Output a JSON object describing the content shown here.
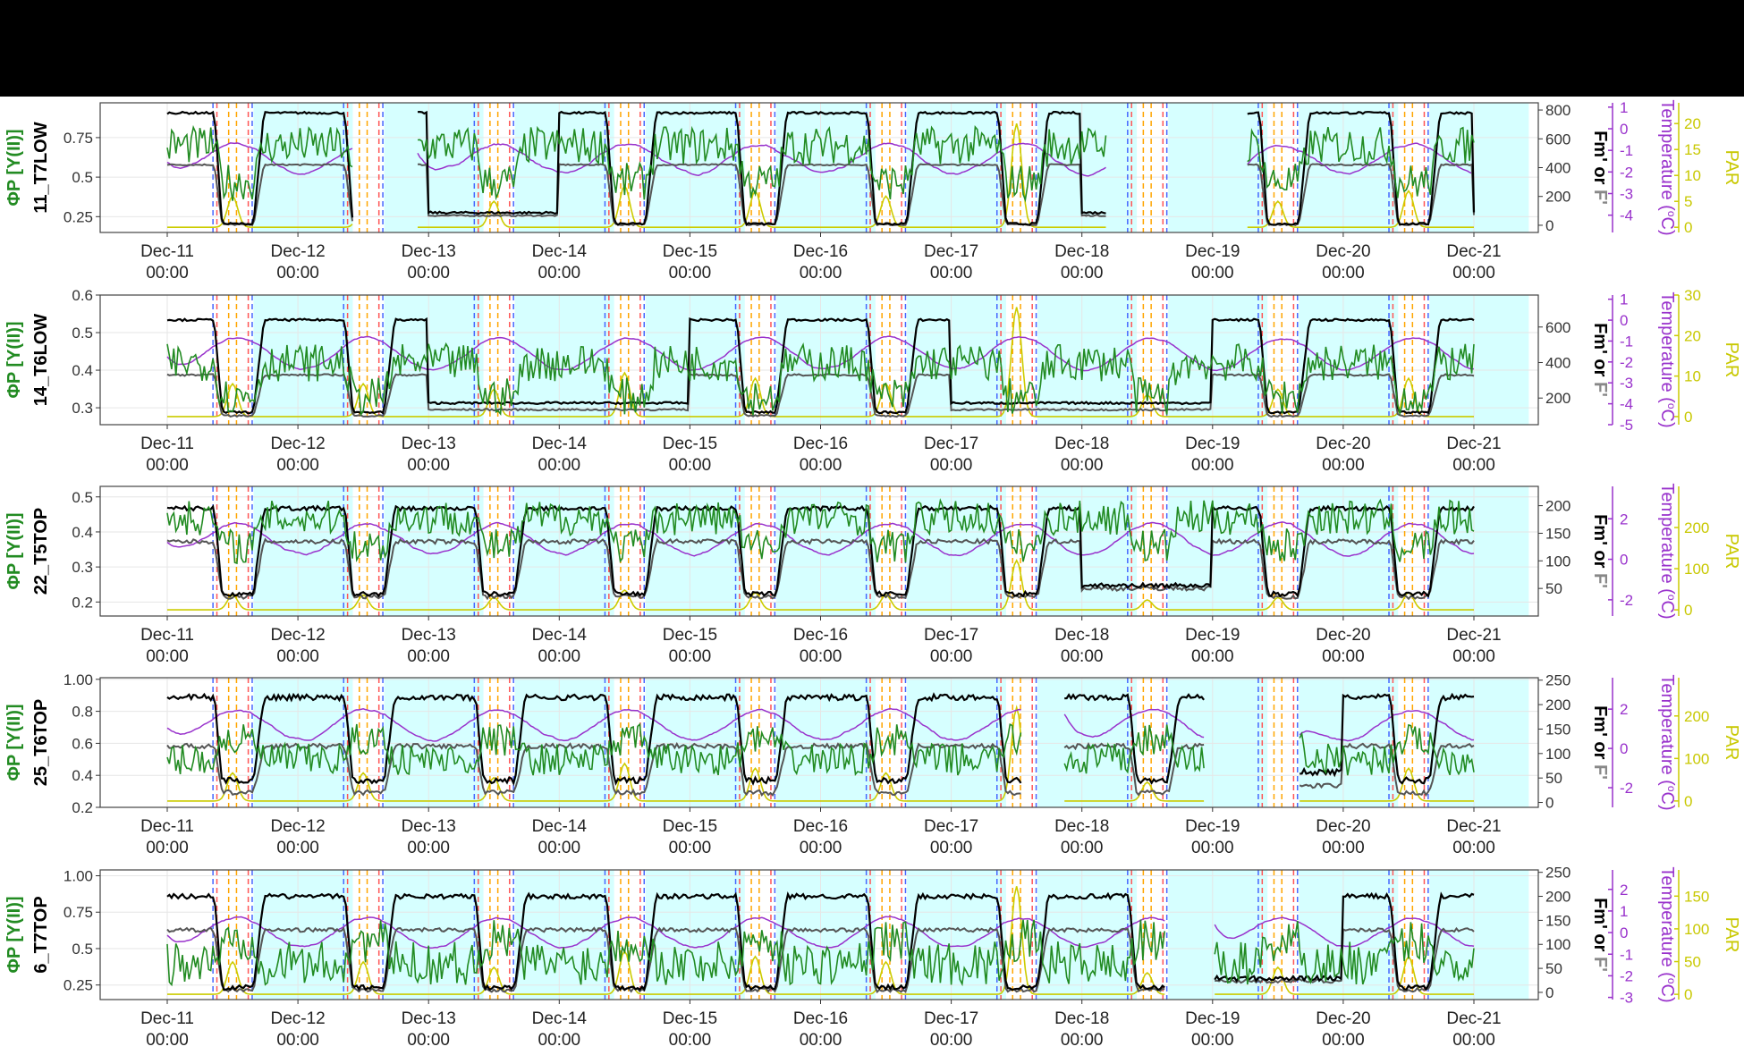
{
  "chart_data": {
    "type": "line",
    "x_range": [
      "Dec-11 00:00",
      "Dec-21 00:00"
    ],
    "x_tick_labels": [
      [
        "Dec-11",
        "00:00"
      ],
      [
        "Dec-12",
        "00:00"
      ],
      [
        "Dec-13",
        "00:00"
      ],
      [
        "Dec-14",
        "00:00"
      ],
      [
        "Dec-15",
        "00:00"
      ],
      [
        "Dec-16",
        "00:00"
      ],
      [
        "Dec-17",
        "00:00"
      ],
      [
        "Dec-18",
        "00:00"
      ],
      [
        "Dec-19",
        "00:00"
      ],
      [
        "Dec-20",
        "00:00"
      ],
      [
        "Dec-21",
        "00:00"
      ]
    ],
    "axis_labels": {
      "phi": "ΦP [Y(II)]",
      "fm": "Fm' or F'",
      "fm_part_black": "Fm'",
      "fm_part_or": " or ",
      "fm_part_grey": "F'",
      "temp": "Temperature (°C)",
      "temp_pre": "Temperature (",
      "temp_sup": "o",
      "temp_post": "C)",
      "par": "PAR"
    },
    "colors": {
      "phi": "#228b22",
      "fm": "#000000",
      "f": "#555555",
      "temperature": "#9932cc",
      "par": "#cccc00",
      "night_shade": "#00ffff",
      "marker_red": "#ff5555",
      "marker_blue": "#4466ff",
      "marker_orange": "#ffa500"
    },
    "night_shading_days": [
      0.42,
      0.66
    ],
    "marker_line_offsets_days": [
      {
        "offset": 0.35,
        "color": "blue"
      },
      {
        "offset": 0.38,
        "color": "red"
      },
      {
        "offset": 0.47,
        "color": "orange"
      },
      {
        "offset": 0.53,
        "color": "orange"
      },
      {
        "offset": 0.62,
        "color": "red"
      },
      {
        "offset": 0.65,
        "color": "blue"
      }
    ],
    "panels": [
      {
        "id": "11_T7LOW",
        "phi_ylim": [
          0.15,
          0.97
        ],
        "phi_ticks": [
          0.25,
          0.5,
          0.75
        ],
        "fm_ylim": [
          -50,
          850
        ],
        "fm_ticks": [
          0,
          200,
          400,
          600,
          800
        ],
        "temp_ylim": [
          -4.8,
          1.2
        ],
        "temp_ticks": [
          -4,
          -3,
          -2,
          -1,
          0,
          1
        ],
        "par_ylim": [
          -1,
          24
        ],
        "par_ticks": [
          0,
          5,
          10,
          15,
          20
        ],
        "gaps": [
          [
            1.42,
            1.9
          ],
          [
            7.2,
            8.25
          ]
        ],
        "phi": {
          "day": 0.47,
          "night": 0.7,
          "noise": 0.12
        },
        "fm": {
          "day": 10,
          "night": 780,
          "noise": 15,
          "night_days": [
            0,
            3,
            4,
            5,
            8
          ]
        },
        "f": {
          "day": 5,
          "night": 420,
          "noise": 10
        },
        "temp": {
          "base": -1.4,
          "amp": 1.6,
          "noise": 0.5
        },
        "par_peak": 20
      },
      {
        "id": "14_T6LOW",
        "phi_ylim": [
          0.255,
          0.6
        ],
        "phi_ticks": [
          0.3,
          0.4,
          0.5,
          0.6
        ],
        "fm_ylim": [
          50,
          780
        ],
        "fm_ticks": [
          200,
          400,
          600
        ],
        "temp_ylim": [
          -5,
          1.2
        ],
        "temp_ticks": [
          -5,
          -4,
          -3,
          -2,
          -1,
          0,
          1
        ],
        "par_ylim": [
          -2,
          30
        ],
        "par_ticks": [
          0,
          10,
          20,
          30
        ],
        "gaps": [],
        "phi": {
          "day": 0.33,
          "night": 0.42,
          "noise": 0.05
        },
        "fm": {
          "day": 120,
          "night": 640,
          "noise": 12,
          "night_days": [
            0,
            4,
            8,
            9
          ]
        },
        "f": {
          "day": 100,
          "night": 330,
          "noise": 10
        },
        "temp": {
          "base": -1.6,
          "amp": 1.8,
          "noise": 0.4
        },
        "par_peak": 27
      },
      {
        "id": "22_T5TOP",
        "phi_ylim": [
          0.16,
          0.53
        ],
        "phi_ticks": [
          0.2,
          0.3,
          0.4,
          0.5
        ],
        "fm_ylim": [
          0,
          235
        ],
        "fm_ticks": [
          50,
          100,
          150,
          200
        ],
        "temp_ylim": [
          -2.8,
          3.6
        ],
        "temp_ticks": [
          -2,
          0,
          2
        ],
        "par_ylim": [
          -15,
          300
        ],
        "par_ticks": [
          0,
          100,
          200
        ],
        "gaps": [],
        "phi": {
          "day": 0.36,
          "night": 0.44,
          "noise": 0.05
        },
        "fm": {
          "day": 40,
          "night": 195,
          "noise": 8,
          "night_days": [
            0,
            1,
            3,
            4,
            5,
            8,
            9
          ]
        },
        "f": {
          "day": 35,
          "night": 135,
          "noise": 8
        },
        "temp": {
          "base": 1.0,
          "amp": 1.8,
          "noise": 0.5
        },
        "par_peak": 120
      },
      {
        "id": "25_T6TOP",
        "phi_ylim": [
          0.2,
          1.01
        ],
        "phi_ticks": [
          0.2,
          0.4,
          0.6,
          0.8,
          1.0
        ],
        "fm_ylim": [
          -10,
          255
        ],
        "fm_ticks": [
          0,
          50,
          100,
          150,
          200,
          250
        ],
        "temp_ylim": [
          -3.0,
          3.6
        ],
        "temp_ticks": [
          -2,
          0,
          2
        ],
        "par_ylim": [
          -15,
          290
        ],
        "par_ticks": [
          0,
          100,
          200
        ],
        "gaps": [
          [
            6.55,
            6.85
          ],
          [
            7.95,
            8.65
          ]
        ],
        "phi": {
          "day": 0.62,
          "night": 0.5,
          "noise": 0.1
        },
        "fm": {
          "day": 45,
          "night": 215,
          "noise": 12,
          "night_days": [
            0,
            1,
            3,
            4,
            5,
            6,
            9
          ]
        },
        "f": {
          "day": 20,
          "night": 115,
          "noise": 10
        },
        "temp": {
          "base": 1.2,
          "amp": 1.8,
          "noise": 0.5
        },
        "par_peak": 220
      },
      {
        "id": "6_T7TOP",
        "phi_ylim": [
          0.15,
          1.04
        ],
        "phi_ticks": [
          0.25,
          0.5,
          0.75,
          1.0
        ],
        "fm_ylim": [
          -15,
          255
        ],
        "fm_ticks": [
          0,
          50,
          100,
          150,
          200,
          250
        ],
        "temp_ylim": [
          -3.1,
          2.9
        ],
        "temp_ticks": [
          -3,
          -2,
          -1,
          0,
          1,
          2
        ],
        "par_ylim": [
          -8,
          190
        ],
        "par_ticks": [
          0,
          50,
          100,
          150
        ],
        "gaps": [
          [
            7.65,
            8.0
          ]
        ],
        "phi": {
          "day": 0.55,
          "night": 0.4,
          "noise": 0.15
        },
        "fm": {
          "day": 10,
          "night": 200,
          "noise": 10,
          "night_days": [
            0,
            1,
            2,
            4,
            5,
            6,
            9
          ]
        },
        "f": {
          "day": 5,
          "night": 130,
          "noise": 8
        },
        "temp": {
          "base": 0.0,
          "amp": 1.6,
          "noise": 0.4
        },
        "par_peak": 165
      }
    ]
  }
}
